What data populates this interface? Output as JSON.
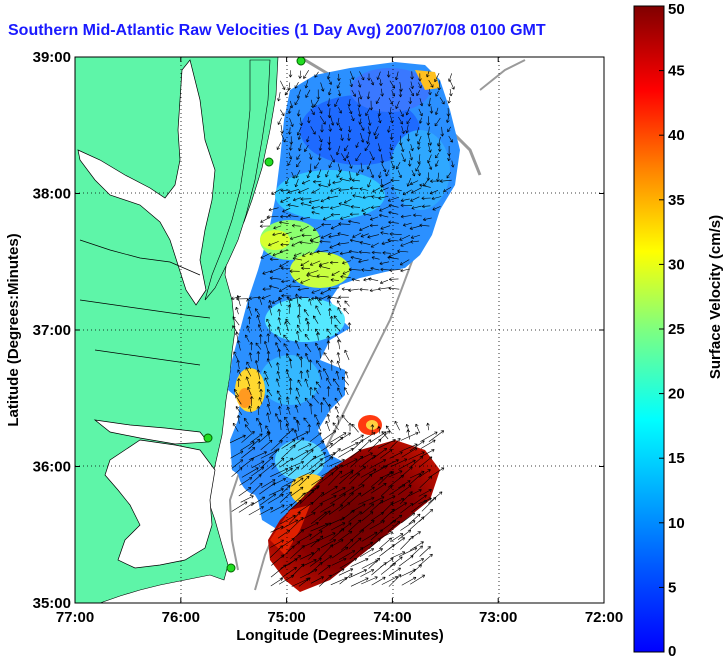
{
  "title": "Southern Mid-Atlantic Raw Velocities (1 Day Avg) 2007/07/08 0100 GMT",
  "xaxis": {
    "label": "Longitude (Degrees:Minutes)",
    "ticks": [
      "77:00",
      "76:00",
      "75:00",
      "74:00",
      "73:00",
      "72:00"
    ]
  },
  "yaxis": {
    "label": "Latitude (Degrees:Minutes)",
    "ticks": [
      "39:00",
      "38:00",
      "37:00",
      "36:00",
      "35:00"
    ]
  },
  "colorbar": {
    "label": "Surface Velocity (cm/s)",
    "ticks": [
      "50",
      "45",
      "40",
      "35",
      "30",
      "25",
      "20",
      "15",
      "10",
      "5",
      "0"
    ],
    "min": 0,
    "max": 50,
    "colormap": "jet"
  },
  "colors": {
    "land": "#5ef5a8",
    "title": "#1a1aff",
    "low_speed": "#1e6aff",
    "high_speed": "#7a0000"
  },
  "map": {
    "region": "Southern Mid-Atlantic Bight",
    "lon_range": [
      -77,
      -72
    ],
    "lat_range": [
      35,
      39
    ],
    "grid": true
  }
}
